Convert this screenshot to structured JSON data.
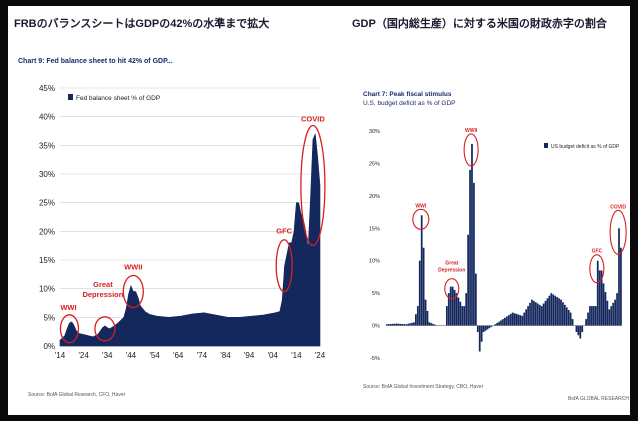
{
  "colors": {
    "bar": "#14285e",
    "accent": "#d62020",
    "grid": "#cfcfcf",
    "text": "#1a1a2e"
  },
  "left": {
    "header": "FRBのバランスシートはGDPの42%の水準まで拡大",
    "subtitle": "Chart 9: Fed balance sheet to hit 42% of GDP...",
    "source": "Source: BofA Global Research, CFO, Haver",
    "chart_data": {
      "type": "area",
      "title": "Chart 9: Fed balance sheet to hit 42% of GDP...",
      "legend": [
        "Fed balance sheet % of GDP"
      ],
      "legend_position": "top-left",
      "ylim": [
        0,
        45
      ],
      "yticks": [
        0,
        5,
        10,
        15,
        20,
        25,
        30,
        35,
        40,
        45
      ],
      "ytick_labels": [
        "0%",
        "5%",
        "10%",
        "15%",
        "20%",
        "25%",
        "30%",
        "35%",
        "40%",
        "45%"
      ],
      "xlim": [
        1914,
        2024
      ],
      "xticks": [
        1914,
        1924,
        1934,
        1944,
        1954,
        1964,
        1974,
        1984,
        1994,
        2004,
        2014,
        2024
      ],
      "xtick_labels": [
        "'14",
        "'24",
        "'34",
        "'44",
        "'54",
        "'64",
        "'74",
        "'84",
        "'94",
        "'04",
        "'14",
        "'24"
      ],
      "grid": true,
      "series": [
        {
          "name": "Fed balance sheet % of GDP",
          "x": [
            1914,
            1916,
            1917,
            1918,
            1919,
            1920,
            1921,
            1922,
            1924,
            1926,
            1928,
            1930,
            1931,
            1932,
            1933,
            1934,
            1935,
            1937,
            1939,
            1941,
            1942,
            1943,
            1944,
            1945,
            1946,
            1947,
            1948,
            1950,
            1952,
            1955,
            1960,
            1965,
            1970,
            1975,
            1980,
            1985,
            1990,
            1995,
            2000,
            2005,
            2007,
            2008,
            2009,
            2010,
            2011,
            2012,
            2013,
            2014,
            2015,
            2016,
            2017,
            2018,
            2019,
            2020,
            2021,
            2022,
            2023,
            2024
          ],
          "values": [
            1,
            1.8,
            3,
            4,
            4.2,
            3.5,
            2.6,
            2.2,
            2,
            1.8,
            1.6,
            2,
            2.6,
            3.2,
            3.5,
            3.2,
            3,
            3.5,
            4.2,
            5,
            6.5,
            9,
            10.5,
            9.5,
            9.5,
            8.5,
            7,
            6,
            5.5,
            5.2,
            5,
            5.2,
            5.6,
            5.8,
            5.4,
            5,
            5,
            5.2,
            5.4,
            5.8,
            6,
            8,
            14,
            16,
            18,
            18,
            20,
            25,
            25,
            23,
            22,
            20,
            17,
            26,
            36,
            37,
            33,
            28
          ]
        }
      ],
      "annotations": [
        {
          "label": "WWI",
          "x": 1918,
          "y": 4
        },
        {
          "label": "Great Depression",
          "x": 1934,
          "y": 3.2
        },
        {
          "label": "WWII",
          "x": 1945,
          "y": 9.5
        },
        {
          "label": "GFC",
          "x": 2009,
          "y": 15
        },
        {
          "label": "COVID",
          "x": 2021,
          "y": 37
        }
      ]
    }
  },
  "right": {
    "header": "GDP（国内総生産）に対する米国の財政赤字の割合",
    "subtitle1": "Chart 7: Peak fiscal stimulus",
    "subtitle2": "U.S. budget deficit as % of GDP",
    "source": "Source: BofA Global Investment Strategy, CBO, Haver",
    "source_right": "BofA GLOBAL RESEARCH",
    "chart_data": {
      "type": "bar",
      "title": "Chart 7: Peak fiscal stimulus",
      "subtitle": "U.S. budget deficit as % of GDP",
      "legend": [
        "US budget deficit as % of GDP"
      ],
      "legend_position": "top-right",
      "ylim": [
        -5,
        32
      ],
      "yticks": [
        -5,
        0,
        5,
        10,
        15,
        20,
        25,
        30
      ],
      "ytick_labels": [
        "-5%",
        "0%",
        "5%",
        "10%",
        "15%",
        "20%",
        "25%",
        "30%"
      ],
      "xlim": [
        1900,
        2022
      ],
      "grid": false,
      "series": [
        {
          "name": "US budget deficit as % of GDP",
          "x": [
            1900,
            1905,
            1910,
            1914,
            1916,
            1917,
            1918,
            1919,
            1920,
            1922,
            1926,
            1930,
            1931,
            1932,
            1933,
            1934,
            1936,
            1939,
            1940,
            1941,
            1942,
            1943,
            1944,
            1945,
            1946,
            1947,
            1948,
            1950,
            1955,
            1960,
            1965,
            1970,
            1975,
            1980,
            1985,
            1990,
            1995,
            1998,
            2000,
            2005,
            2008,
            2009,
            2010,
            2011,
            2012,
            2015,
            2018,
            2019,
            2020,
            2021
          ],
          "values": [
            0.2,
            0.3,
            0.2,
            0.5,
            3,
            10,
            17,
            12,
            4,
            0.5,
            0,
            0,
            3,
            5,
            6,
            6,
            5,
            3,
            3,
            5,
            14,
            24,
            28,
            22,
            8,
            -1,
            -4,
            -1,
            0,
            1,
            2,
            1.5,
            4,
            3,
            5,
            4,
            2,
            -1,
            -2,
            3,
            3,
            10,
            8.5,
            8.5,
            6.5,
            2.5,
            4,
            5,
            15,
            12
          ]
        }
      ],
      "annotations": [
        {
          "label": "WWI",
          "x": 1918,
          "y": 17
        },
        {
          "label": "Great Depression",
          "x": 1934,
          "y": 6
        },
        {
          "label": "WWII",
          "x": 1944,
          "y": 28
        },
        {
          "label": "GFC",
          "x": 2009,
          "y": 10
        },
        {
          "label": "COVID",
          "x": 2020,
          "y": 15
        }
      ]
    }
  }
}
